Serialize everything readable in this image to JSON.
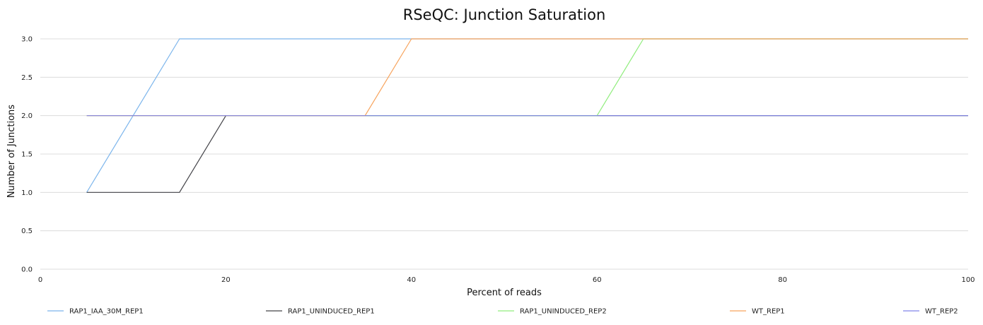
{
  "chart_data": {
    "type": "line",
    "title": "RSeQC: Junction Saturation",
    "xlabel": "Percent of reads",
    "ylabel": "Number of Junctions",
    "xlim": [
      0,
      100
    ],
    "ylim": [
      0,
      3.0
    ],
    "xticks": [
      0,
      20,
      40,
      60,
      80,
      100
    ],
    "yticks": [
      0.0,
      0.5,
      1.0,
      1.5,
      2.0,
      2.5,
      3.0
    ],
    "xtick_labels": [
      "0",
      "20",
      "40",
      "60",
      "80",
      "100"
    ],
    "ytick_labels": [
      "0.0",
      "0.5",
      "1.0",
      "1.5",
      "2.0",
      "2.5",
      "3.0"
    ],
    "grid": true,
    "legend_position": "bottom",
    "series": [
      {
        "name": "RAP1_IAA_30M_REP1",
        "color": "#7cb5ec",
        "x": [
          5,
          10,
          15,
          20,
          25,
          30,
          35,
          40,
          45,
          50,
          55,
          60,
          65,
          70,
          75,
          80,
          85,
          90,
          95,
          100
        ],
        "y": [
          1,
          2,
          3,
          3,
          3,
          3,
          3,
          3,
          3,
          3,
          3,
          3,
          3,
          3,
          3,
          3,
          3,
          3,
          3,
          3
        ]
      },
      {
        "name": "RAP1_UNINDUCED_REP1",
        "color": "#434348",
        "x": [
          5,
          10,
          15,
          20,
          25,
          30,
          35,
          40,
          45,
          50,
          55,
          60,
          65,
          70,
          75,
          80,
          85,
          90,
          95,
          100
        ],
        "y": [
          1,
          1,
          1,
          2,
          2,
          2,
          2,
          2,
          2,
          2,
          2,
          2,
          2,
          2,
          2,
          2,
          2,
          2,
          2,
          2
        ]
      },
      {
        "name": "RAP1_UNINDUCED_REP2",
        "color": "#90ed7d",
        "x": [
          5,
          10,
          15,
          20,
          25,
          30,
          35,
          40,
          45,
          50,
          55,
          60,
          65,
          70,
          75,
          80,
          85,
          90,
          95,
          100
        ],
        "y": [
          2,
          2,
          2,
          2,
          2,
          2,
          2,
          2,
          2,
          2,
          2,
          2,
          3,
          3,
          3,
          3,
          3,
          3,
          3,
          3
        ]
      },
      {
        "name": "WT_REP1",
        "color": "#f7a35c",
        "x": [
          5,
          10,
          15,
          20,
          25,
          30,
          35,
          40,
          45,
          50,
          55,
          60,
          65,
          70,
          75,
          80,
          85,
          90,
          95,
          100
        ],
        "y": [
          2,
          2,
          2,
          2,
          2,
          2,
          2,
          3,
          3,
          3,
          3,
          3,
          3,
          3,
          3,
          3,
          3,
          3,
          3,
          3
        ]
      },
      {
        "name": "WT_REP2",
        "color": "#8085e9",
        "x": [
          5,
          10,
          15,
          20,
          25,
          30,
          35,
          40,
          45,
          50,
          55,
          60,
          65,
          70,
          75,
          80,
          85,
          90,
          95,
          100
        ],
        "y": [
          2,
          2,
          2,
          2,
          2,
          2,
          2,
          2,
          2,
          2,
          2,
          2,
          2,
          2,
          2,
          2,
          2,
          2,
          2,
          2
        ]
      }
    ]
  }
}
